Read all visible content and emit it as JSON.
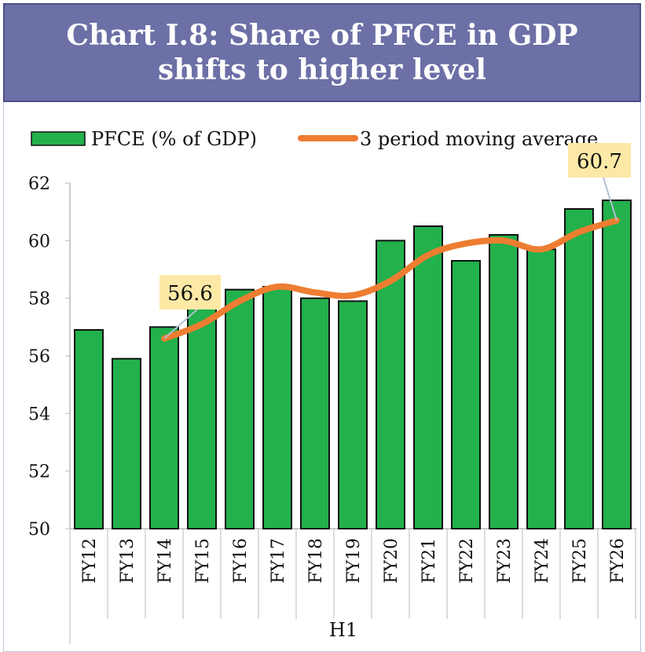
{
  "chart_data": {
    "type": "bar",
    "title_lines": [
      "Chart I.8:  Share of PFCE in GDP",
      "shifts to higher level"
    ],
    "categories": [
      "FY12",
      "FY13",
      "FY14",
      "FY15",
      "FY16",
      "FY17",
      "FY18",
      "FY19",
      "FY20",
      "FY21",
      "FY22",
      "FY23",
      "FY24",
      "FY25",
      "FY26"
    ],
    "xlabel": "H1",
    "ylabel": "",
    "ylim": [
      50,
      62
    ],
    "yticks": [
      50,
      52,
      54,
      56,
      58,
      60,
      62
    ],
    "grid": false,
    "legend_position": "top",
    "series": [
      {
        "name": "PFCE (% of GDP)",
        "type": "bar",
        "color": "#22b14c",
        "values": [
          56.9,
          55.9,
          57.0,
          58.4,
          58.3,
          58.4,
          58.0,
          57.9,
          60.0,
          60.5,
          59.3,
          60.2,
          59.7,
          61.1,
          61.4
        ]
      },
      {
        "name": "3 period moving average",
        "type": "line",
        "color": "#ed7d31",
        "values": [
          null,
          null,
          56.6,
          57.1,
          57.9,
          58.4,
          58.2,
          58.1,
          58.6,
          59.5,
          59.9,
          60.0,
          59.7,
          60.3,
          60.7
        ]
      }
    ],
    "annotations": [
      {
        "category": "FY14",
        "text": "56.6"
      },
      {
        "category": "FY26",
        "text": "60.7"
      }
    ],
    "annotation_color": "#fde9a6"
  }
}
